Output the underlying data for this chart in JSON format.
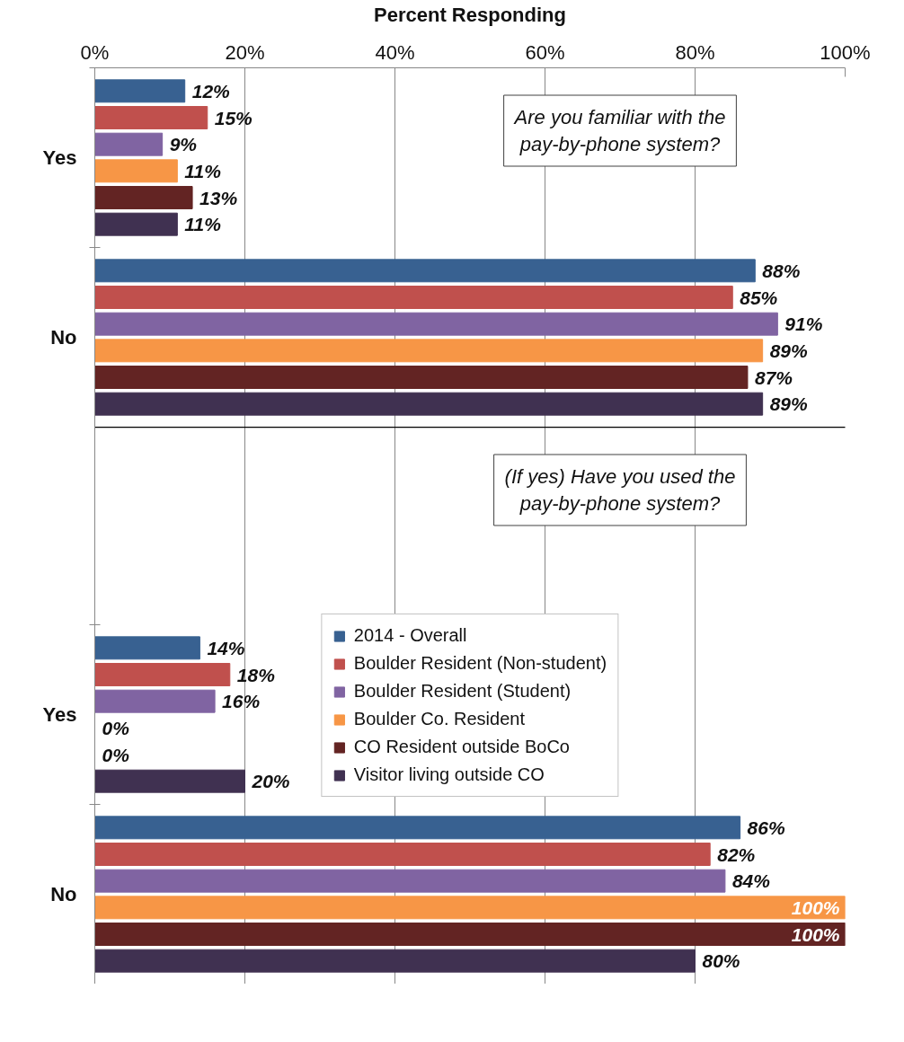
{
  "chart_data": [
    {
      "type": "bar",
      "orientation": "horizontal",
      "xlabel": "Percent Responding",
      "categories": [
        "Yes",
        "No"
      ],
      "series": [
        {
          "color": "#386191",
          "values": [
            12,
            88
          ],
          "value_labels": [
            "12%",
            "88%"
          ]
        },
        {
          "color": "#c0504d",
          "values": [
            15,
            85
          ],
          "value_labels": [
            "15%",
            "85%"
          ]
        },
        {
          "color": "#8064a2",
          "values": [
            9,
            91
          ],
          "value_labels": [
            "9%",
            "91%"
          ]
        },
        {
          "color": "#f79646",
          "values": [
            11,
            89
          ],
          "value_labels": [
            "11%",
            "89%"
          ]
        },
        {
          "color": "#632423",
          "values": [
            13,
            87
          ],
          "value_labels": [
            "13%",
            "87%"
          ]
        },
        {
          "color": "#403151",
          "values": [
            11,
            89
          ],
          "value_labels": [
            "11%",
            "89%"
          ]
        }
      ],
      "xlim": [
        0,
        100
      ],
      "xticks": [
        {
          "value": 0,
          "label": "0%"
        },
        {
          "value": 20,
          "label": "20%"
        },
        {
          "value": 40,
          "label": "40%"
        },
        {
          "value": 60,
          "label": "60%"
        },
        {
          "value": 80,
          "label": "80%"
        },
        {
          "value": 100,
          "label": "100%"
        }
      ],
      "grid": "x",
      "annotations": [
        "Are you familiar with the pay-by-phone system?"
      ]
    },
    {
      "type": "bar",
      "orientation": "horizontal",
      "categories": [
        "Yes",
        "No"
      ],
      "series": [
        {
          "name": "2014 - Overall",
          "color": "#386191",
          "values": [
            14,
            86
          ],
          "value_labels": [
            "14%",
            "86%"
          ]
        },
        {
          "name": "Boulder Resident (Non-student)",
          "color": "#c0504d",
          "values": [
            18,
            82
          ],
          "value_labels": [
            "18%",
            "82%"
          ]
        },
        {
          "name": "Boulder Resident (Student)",
          "color": "#8064a2",
          "values": [
            16,
            84
          ],
          "value_labels": [
            "16%",
            "84%"
          ]
        },
        {
          "name": "Boulder Co. Resident",
          "color": "#f79646",
          "values": [
            0,
            100
          ],
          "value_labels": [
            "0%",
            "100%"
          ]
        },
        {
          "name": "CO Resident outside BoCo",
          "color": "#632423",
          "values": [
            0,
            100
          ],
          "value_labels": [
            "0%",
            "100%"
          ]
        },
        {
          "name": "Visitor living outside CO",
          "color": "#403151",
          "values": [
            20,
            80
          ],
          "value_labels": [
            "20%",
            "80%"
          ]
        }
      ],
      "xlim": [
        0,
        100
      ],
      "xticks": [
        {
          "value": 0,
          "label": "0%"
        },
        {
          "value": 20,
          "label": "20%"
        },
        {
          "value": 40,
          "label": "40%"
        },
        {
          "value": 60,
          "label": "60%"
        },
        {
          "value": 80,
          "label": "80%"
        },
        {
          "value": 100,
          "label": "100%"
        }
      ],
      "tick_labels": "y",
      "grid": "x",
      "legend": "center",
      "annotations": [
        "(If yes) Have you used the pay-by-phone system?"
      ]
    }
  ]
}
